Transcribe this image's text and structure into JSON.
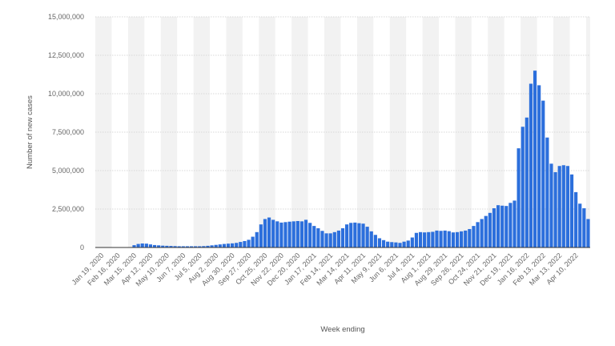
{
  "chart_data": {
    "type": "bar",
    "title": "",
    "xlabel": "Week ending",
    "ylabel": "Number of new cases",
    "ylim": [
      0,
      15000000
    ],
    "y_ticks": [
      {
        "value": 0,
        "label": "0"
      },
      {
        "value": 2500000,
        "label": "2,500,000"
      },
      {
        "value": 5000000,
        "label": "5,000,000"
      },
      {
        "value": 7500000,
        "label": "7,500,000"
      },
      {
        "value": 10000000,
        "label": "10,000,000"
      },
      {
        "value": 12500000,
        "label": "12,500,000"
      },
      {
        "value": 15000000,
        "label": "15,000,000"
      }
    ],
    "x_tick_labels": [
      {
        "index": 0,
        "label": "Jan 19, 2020"
      },
      {
        "index": 4,
        "label": "Feb 16, 2020"
      },
      {
        "index": 8,
        "label": "Mar 15, 2020"
      },
      {
        "index": 12,
        "label": "Apr 12, 2020"
      },
      {
        "index": 16,
        "label": "May 10, 2020"
      },
      {
        "index": 20,
        "label": "Jun 7, 2020"
      },
      {
        "index": 24,
        "label": "Jul 5, 2020"
      },
      {
        "index": 28,
        "label": "Aug 2, 2020"
      },
      {
        "index": 32,
        "label": "Aug 30, 2020"
      },
      {
        "index": 36,
        "label": "Sep 27, 2020"
      },
      {
        "index": 40,
        "label": "Oct 25, 2020"
      },
      {
        "index": 44,
        "label": "Nov 22, 2020"
      },
      {
        "index": 48,
        "label": "Dec 20, 2020"
      },
      {
        "index": 52,
        "label": "Jan 17, 2021"
      },
      {
        "index": 56,
        "label": "Feb 14, 2021"
      },
      {
        "index": 60,
        "label": "Mar 14, 2021"
      },
      {
        "index": 64,
        "label": "Apr 11, 2021"
      },
      {
        "index": 68,
        "label": "May 9, 2021"
      },
      {
        "index": 72,
        "label": "Jun 6, 2021"
      },
      {
        "index": 76,
        "label": "Jul 4, 2021"
      },
      {
        "index": 80,
        "label": "Aug 1, 2021"
      },
      {
        "index": 84,
        "label": "Aug 29, 2021"
      },
      {
        "index": 88,
        "label": "Sep 26, 2021"
      },
      {
        "index": 92,
        "label": "Oct 24, 2021"
      },
      {
        "index": 96,
        "label": "Nov 21, 2021"
      },
      {
        "index": 100,
        "label": "Dec 19, 2021"
      },
      {
        "index": 104,
        "label": "Jan 16, 2022"
      },
      {
        "index": 108,
        "label": "Feb 13, 2022"
      },
      {
        "index": 112,
        "label": "Mar 13, 2022"
      },
      {
        "index": 116,
        "label": "Apr 10, 2022"
      }
    ],
    "values": [
      0,
      0,
      0,
      0,
      0,
      0,
      0,
      0,
      10000,
      150000,
      230000,
      260000,
      250000,
      200000,
      160000,
      140000,
      120000,
      110000,
      100000,
      90000,
      80000,
      80000,
      80000,
      80000,
      80000,
      80000,
      90000,
      110000,
      140000,
      170000,
      200000,
      230000,
      250000,
      270000,
      300000,
      360000,
      420000,
      500000,
      700000,
      1000000,
      1500000,
      1850000,
      1950000,
      1800000,
      1700000,
      1620000,
      1650000,
      1680000,
      1700000,
      1720000,
      1700000,
      1800000,
      1600000,
      1400000,
      1250000,
      1080000,
      920000,
      920000,
      1000000,
      1100000,
      1250000,
      1500000,
      1600000,
      1620000,
      1580000,
      1550000,
      1350000,
      1050000,
      820000,
      600000,
      480000,
      380000,
      350000,
      330000,
      300000,
      380000,
      450000,
      650000,
      950000,
      1000000,
      980000,
      1000000,
      1020000,
      1100000,
      1080000,
      1100000,
      1060000,
      980000,
      1000000,
      1050000,
      1100000,
      1200000,
      1400000,
      1650000,
      1850000,
      2050000,
      2250000,
      2550000,
      2750000,
      2720000,
      2700000,
      2900000,
      3050000,
      6450000,
      7850000,
      8450000,
      10650000,
      11500000,
      10550000,
      9550000,
      7150000,
      5450000,
      4900000,
      5300000,
      5350000,
      5300000,
      4750000,
      3600000,
      2850000,
      2550000,
      1850000
    ],
    "grid": true,
    "legend": "none",
    "colors": {
      "bar": "#2c6fdc",
      "band": "#f2f2f2",
      "grid": "#d8d8d8",
      "axis": "#333333"
    }
  }
}
